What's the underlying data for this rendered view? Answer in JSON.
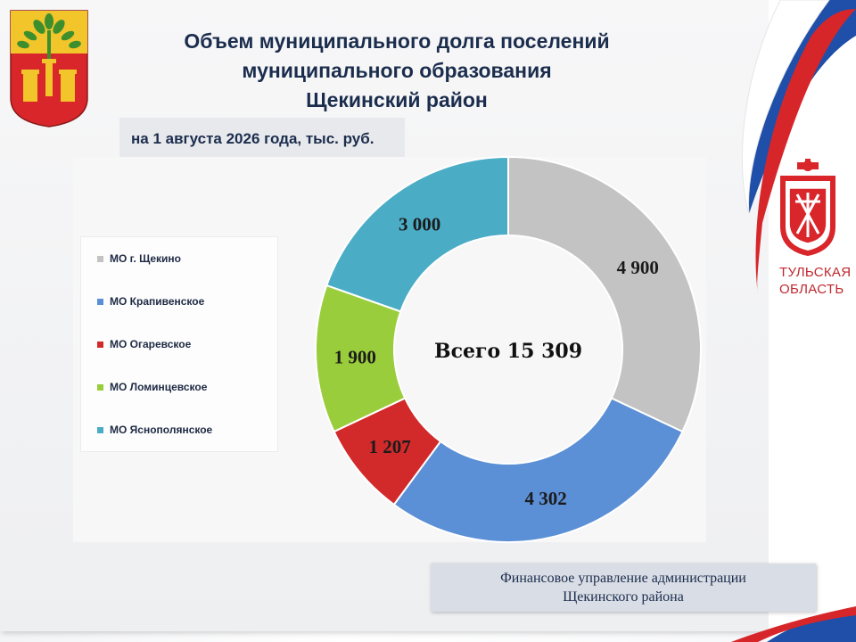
{
  "header": {
    "title_lines": [
      "Объем муниципального долга поселений",
      "муниципального образования",
      "Щекинский район"
    ],
    "date_label": "на 1 августа 2026 года, тыс. руб."
  },
  "region": {
    "label_lines": [
      "ТУЛЬСКАЯ",
      "ОБЛАСТЬ"
    ]
  },
  "footer": {
    "lines": [
      "Финансовое управление администрации",
      "Щекинского района"
    ]
  },
  "chart_data": {
    "type": "pie",
    "center_label": "Всего 15 309",
    "categories": [
      "МО г. Щекино",
      "МО Крапивенское",
      "МО Огаревское",
      "МО Ломинцевское",
      "МО Яснополянское"
    ],
    "values": [
      4900,
      4302,
      1207,
      1900,
      3000
    ],
    "value_labels": [
      "4 900",
      "4 302",
      "1 207",
      "1 900",
      "3 000"
    ],
    "colors": [
      "#c3c3c3",
      "#5b8fd6",
      "#d22a2a",
      "#9acd3c",
      "#4bacc6"
    ],
    "legend_position": "left",
    "total": 15309
  }
}
